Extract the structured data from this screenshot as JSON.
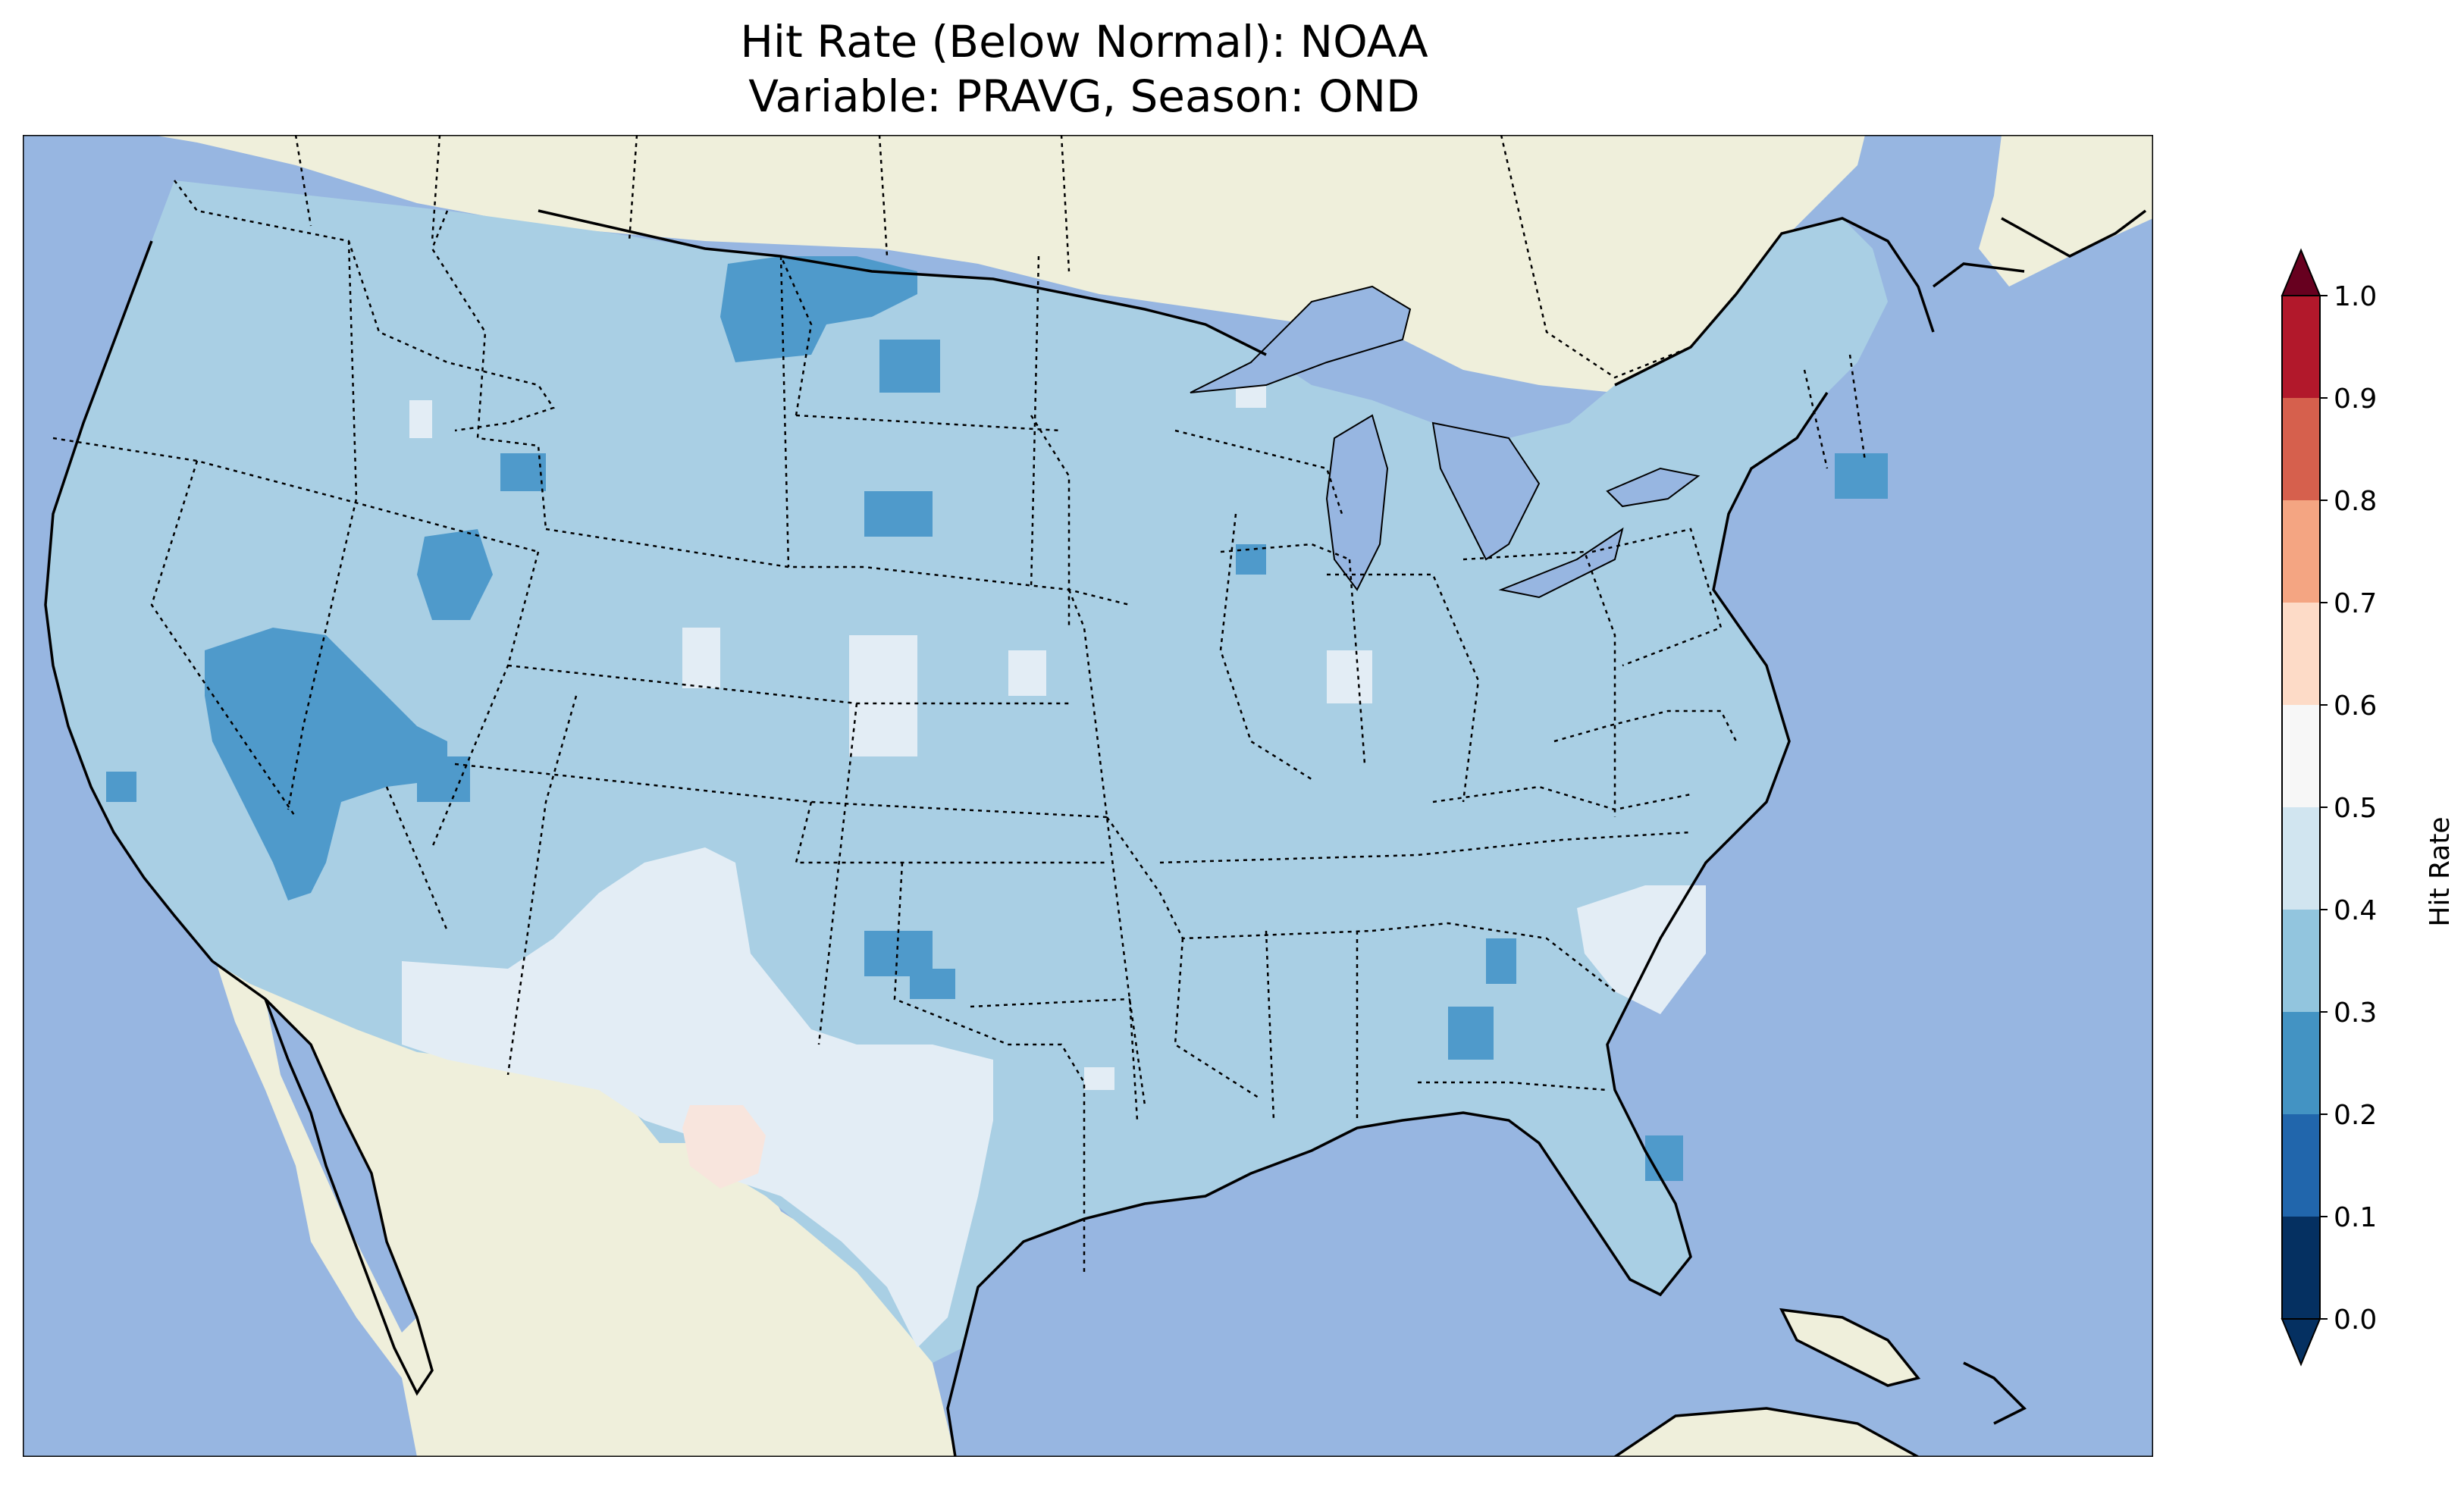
{
  "title": "Hit Rate (Below Normal): NOAA",
  "subtitle": "Variable: PRAVG, Season: OND",
  "colorbar": {
    "label": "Hit Rate",
    "ticks": [
      "0.0",
      "0.1",
      "0.2",
      "0.3",
      "0.4",
      "0.5",
      "0.6",
      "0.7",
      "0.8",
      "0.9",
      "1.0"
    ],
    "colors": [
      "#053061",
      "#2166ac",
      "#4393c3",
      "#92c5de",
      "#d1e5f0",
      "#f7f7f7",
      "#fddbc7",
      "#f4a582",
      "#d6604d",
      "#b2182b",
      "#67001f"
    ],
    "extend": "both"
  },
  "map": {
    "ocean_color": "#97b6e1",
    "land_color": "#efefdb",
    "category_colors": {
      "0.2-0.3": "#4f9acb",
      "0.3-0.4": "#a9cfe4",
      "0.4-0.5": "#e3edf5",
      "0.5-0.6": "#f8e5dd"
    },
    "dominant_range": "0.3-0.4"
  }
}
